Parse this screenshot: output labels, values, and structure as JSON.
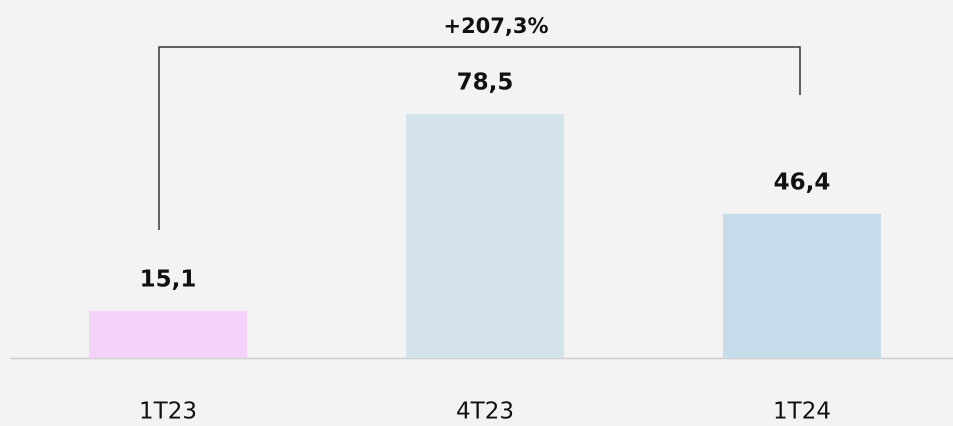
{
  "chart_data": {
    "type": "bar",
    "categories": [
      "1T23",
      "4T23",
      "1T24"
    ],
    "values": [
      15.1,
      78.5,
      46.4
    ],
    "value_labels": [
      "15,1",
      "78,5",
      "46,4"
    ],
    "colors": [
      "#f5d2f9",
      "#d4e2ea",
      "#c6dcea"
    ],
    "annotation": "+207,3%"
  }
}
